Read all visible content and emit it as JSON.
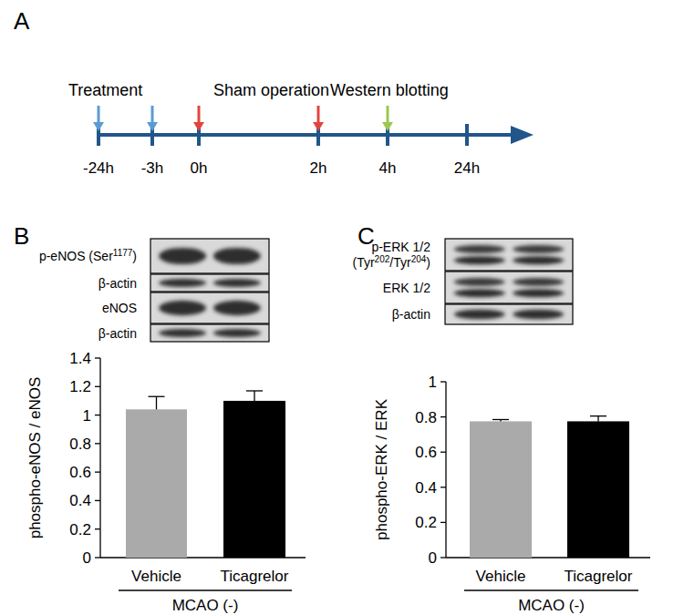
{
  "chart_data": [
    {
      "type": "bar",
      "title": "B",
      "y_label": "phospho-eNOS / eNOS",
      "categories": [
        "Vehicle",
        "Ticagrelor"
      ],
      "values": [
        1.04,
        1.1
      ],
      "errors": [
        0.09,
        0.07
      ],
      "colors": [
        "#aaaaaa",
        "#000000"
      ],
      "ylim": [
        0,
        1.4
      ],
      "yticks": [
        0,
        0.2,
        0.4,
        0.6,
        0.8,
        1,
        1.2,
        1.4
      ],
      "annotations": [
        "MCAO (-)"
      ]
    },
    {
      "type": "bar",
      "title": "C",
      "y_label": "phospho-ERK / ERK",
      "categories": [
        "Vehicle",
        "Ticagrelor"
      ],
      "values": [
        0.775,
        0.775
      ],
      "errors": [
        0.01,
        0.03
      ],
      "colors": [
        "#aaaaaa",
        "#000000"
      ],
      "ylim": [
        0,
        1
      ],
      "yticks": [
        0,
        0.2,
        0.4,
        0.6,
        0.8,
        1
      ],
      "annotations": [
        "MCAO (-)"
      ]
    }
  ],
  "timeline": {
    "title": "A",
    "ticks": [
      "-24h",
      "-3h",
      "0h",
      "2h",
      "4h",
      "24h"
    ],
    "events": [
      {
        "label": "Treatment",
        "at": [
          "-24h",
          "-3h"
        ],
        "color": "#5b9bd5"
      },
      {
        "label": "Sham operation",
        "at": [
          "0h",
          "2h"
        ],
        "color": "#e0463e"
      },
      {
        "label": "Western blotting",
        "at": [
          "4h"
        ],
        "color": "#9bc850"
      }
    ]
  },
  "blots": [
    [
      [
        [
          {
            "t": "p-eNOS (Ser"
          },
          {
            "t": "1177",
            "sup": true
          },
          {
            "t": ")"
          }
        ]
      ],
      [
        [
          {
            "t": "β-actin"
          }
        ]
      ],
      [
        [
          {
            "t": "eNOS"
          }
        ]
      ],
      [
        [
          {
            "t": "β-actin"
          }
        ]
      ]
    ],
    [
      [
        [
          {
            "t": "p-ERK 1/2"
          }
        ],
        [
          {
            "t": "(Tyr"
          },
          {
            "t": "202",
            "sup": true
          },
          {
            "t": "/Tyr"
          },
          {
            "t": "204",
            "sup": true
          },
          {
            "t": ")"
          }
        ]
      ],
      [
        [
          {
            "t": "ERK 1/2"
          }
        ]
      ],
      [
        [
          {
            "t": "β-actin"
          }
        ]
      ]
    ]
  ]
}
